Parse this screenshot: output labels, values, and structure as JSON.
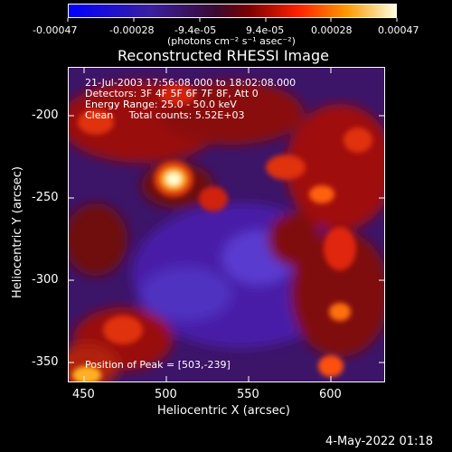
{
  "colorbar": {
    "tick_labels": [
      "-0.00047",
      "-0.00028",
      "-9.4e-05",
      "9.4e-05",
      "0.00028",
      "0.00047"
    ],
    "units": "(photons cm⁻² s⁻¹ asec⁻²)"
  },
  "plot": {
    "title": "Reconstructed RHESSI Image",
    "info_lines": [
      "21-Jul-2003 17:56:08.000 to 18:02:08.000",
      "Detectors: 3F 4F 5F 6F 7F 8F, Att 0",
      "Energy Range: 25.0 - 50.0 keV",
      "Clean     Total counts: 5.52E+03"
    ],
    "peak_label": "Position of Peak = [503,-239]",
    "xlabel": "Heliocentric X (arcsec)",
    "ylabel": "Heliocentric Y (arcsec)",
    "x_ticks": [
      "450",
      "500",
      "550",
      "600"
    ],
    "y_ticks": [
      "-200",
      "-250",
      "-300",
      "-350"
    ]
  },
  "footer": {
    "timestamp": "4-May-2022 01:18"
  }
}
